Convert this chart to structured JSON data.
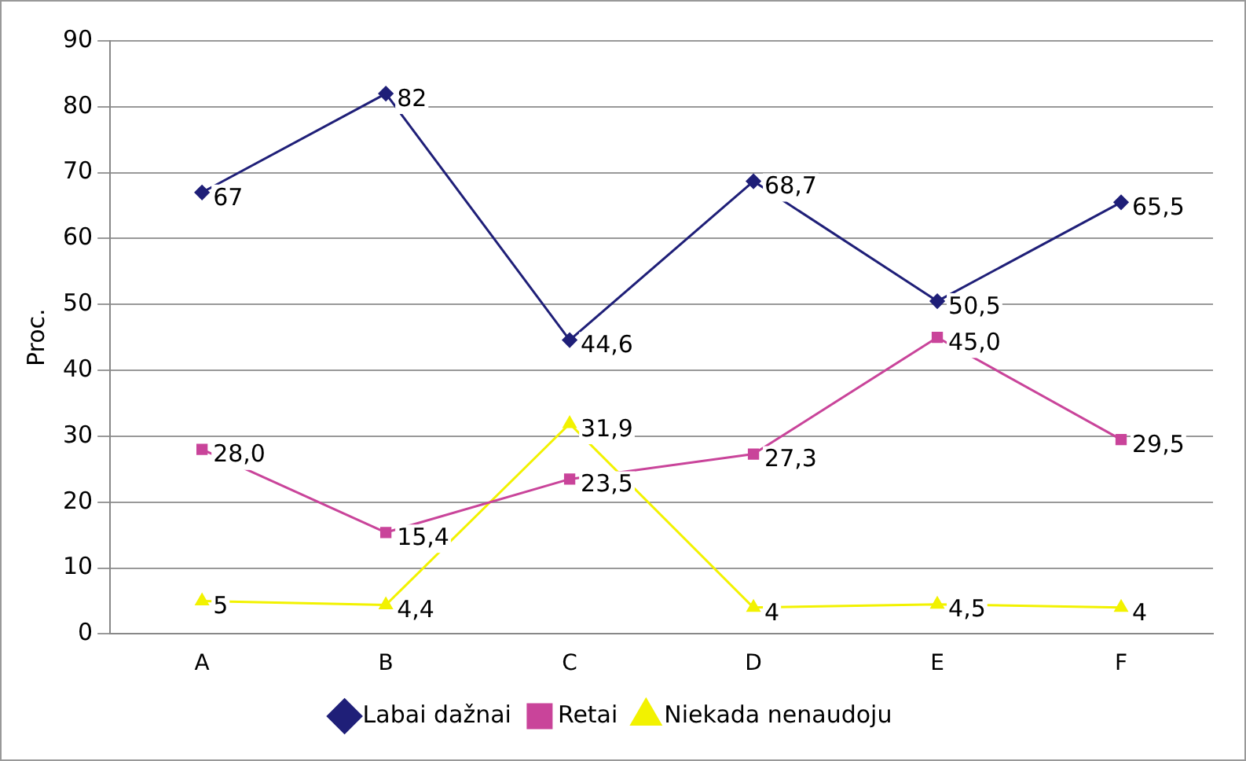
{
  "chart_data": {
    "type": "line",
    "ylabel": "Proc.",
    "categories": [
      "A",
      "B",
      "C",
      "D",
      "E",
      "F"
    ],
    "series": [
      {
        "name": "Labai dažnai",
        "color": "#1f1f78",
        "marker": "diamond",
        "values": [
          67,
          82,
          44.6,
          68.7,
          50.5,
          65.5
        ],
        "value_labels": [
          "67",
          "82",
          "44,6",
          "68,7",
          "50,5",
          "65,5"
        ]
      },
      {
        "name": "Retai",
        "color": "#c9449a",
        "marker": "square",
        "values": [
          28.0,
          15.4,
          23.5,
          27.3,
          45.0,
          29.5
        ],
        "value_labels": [
          "28,0",
          "15,4",
          "23,5",
          "27,3",
          "45,0",
          "29,5"
        ]
      },
      {
        "name": "Niekada nenaudoju",
        "color": "#f2f200",
        "marker": "triangle",
        "values": [
          5,
          4.4,
          31.9,
          4,
          4.5,
          4
        ],
        "value_labels": [
          "5",
          "4,4",
          "31,9",
          "4",
          "4,5",
          "4"
        ]
      }
    ],
    "ylim": [
      0,
      90
    ],
    "yticks": [
      0,
      10,
      20,
      30,
      40,
      50,
      60,
      70,
      80,
      90
    ],
    "grid": "y",
    "legend": "bottom",
    "line_style": "solid"
  }
}
